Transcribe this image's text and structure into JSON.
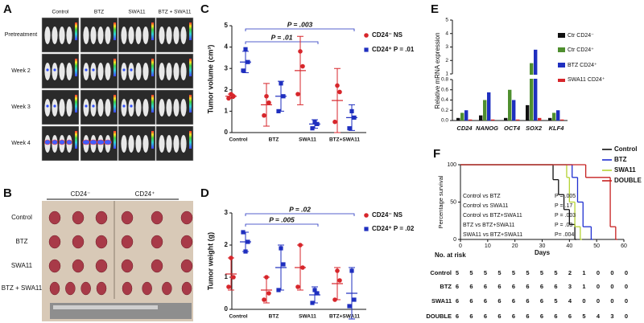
{
  "panel_a": {
    "label": "A",
    "columns": [
      "Control",
      "BTZ",
      "SWA11",
      "BTZ + SWA11"
    ],
    "rows": [
      "Pretreatment",
      "Week 2",
      "Week 3",
      "Week 4"
    ]
  },
  "panel_b": {
    "label": "B",
    "groups": [
      "CD24⁻",
      "CD24⁺"
    ],
    "rows": [
      "Control",
      "BTZ",
      "SWA11",
      "BTZ + SWA11"
    ]
  },
  "chart_data": [
    {
      "type": "dotplot",
      "panel_label": "C",
      "ylabel": "Tumor volume (cm³)",
      "categories": [
        "Control",
        "BTZ",
        "SWA11",
        "BTZ+SWA11"
      ],
      "ylim": [
        0,
        5
      ],
      "yticks": [
        0,
        1,
        2,
        3,
        4,
        5
      ],
      "annotations": [
        "P = .003",
        "P = .01"
      ],
      "series": [
        {
          "name": "CD24⁻ NS",
          "color": "#d7262b",
          "marker": "circle",
          "points": [
            [
              1.6,
              1.8,
              1.7
            ],
            [
              0.8,
              1.7,
              1.4
            ],
            [
              1.8,
              3.8,
              3.1
            ],
            [
              0.5,
              2.2,
              1.9
            ]
          ],
          "means": [
            1.7,
            1.3,
            2.9,
            1.5
          ],
          "sd": [
            0.1,
            1.0,
            1.6,
            1.5
          ]
        },
        {
          "name": "CD24⁺ P = .01",
          "color": "#1f2fbf",
          "marker": "square",
          "points": [
            [
              2.9,
              3.9,
              3.3
            ],
            [
              1.0,
              2.3,
              1.7
            ],
            [
              0.2,
              0.5,
              0.4
            ],
            [
              0.2,
              1.0,
              0.7
            ]
          ],
          "means": [
            3.3,
            1.7,
            0.4,
            0.7
          ],
          "sd": [
            0.5,
            0.7,
            0.2,
            0.6
          ]
        }
      ]
    },
    {
      "type": "dotplot",
      "panel_label": "D",
      "ylabel": "Tumor weight (g)",
      "categories": [
        "Control",
        "BTZ",
        "SWA11",
        "BTZ+SWA11"
      ],
      "ylim": [
        0,
        3
      ],
      "yticks": [
        0,
        1,
        2,
        3
      ],
      "annotations": [
        "P = .02",
        "P = .005"
      ],
      "series": [
        {
          "name": "CD24⁻ NS",
          "color": "#d7262b",
          "marker": "circle",
          "points": [
            [
              0.7,
              1.6,
              1.0
            ],
            [
              0.3,
              1.0,
              0.5
            ],
            [
              0.7,
              2.0,
              1.3
            ],
            [
              0.3,
              1.2,
              0.9
            ]
          ],
          "means": [
            1.1,
            0.6,
            1.3,
            0.8
          ],
          "sd": [
            0.5,
            0.4,
            0.7,
            0.5
          ]
        },
        {
          "name": "CD24⁺ P = .02",
          "color": "#1f2fbf",
          "marker": "square",
          "points": [
            [
              2.4,
              1.8,
              2.1
            ],
            [
              0.6,
              1.9,
              1.4
            ],
            [
              0.2,
              0.6,
              0.5
            ],
            [
              0.1,
              1.2,
              0.3
            ]
          ],
          "means": [
            2.1,
            1.3,
            0.45,
            0.5
          ],
          "sd": [
            0.3,
            0.7,
            0.25,
            0.8
          ]
        }
      ]
    },
    {
      "type": "bar",
      "panel_label": "E",
      "ylabel": "Relative mRNA expression",
      "categories": [
        "CD24",
        "NANOG",
        "OCT4",
        "SOX2",
        "KLF4"
      ],
      "ylim": [
        0,
        5
      ],
      "axis_break": [
        0.8,
        1
      ],
      "yticks": [
        {
          "value": 0,
          "label": "0.0"
        },
        0.2,
        0.4,
        0.6,
        0.8,
        1,
        2,
        3,
        4,
        5
      ],
      "series": [
        {
          "name": "Ctr CD24⁻",
          "color": "#111111",
          "values": [
            0.05,
            0.1,
            0.05,
            0.3,
            0.05
          ]
        },
        {
          "name": "Ctr CD24⁺",
          "color": "#4f8f2f",
          "values": [
            0.15,
            0.4,
            0.6,
            1.8,
            0.15
          ]
        },
        {
          "name": "BTZ CD24⁺",
          "color": "#1f2fbf",
          "values": [
            0.2,
            0.55,
            0.4,
            2.8,
            0.2
          ]
        },
        {
          "name": "SWA11 CD24⁺",
          "color": "#d7262b",
          "values": [
            0.02,
            0.02,
            0.02,
            0.05,
            0.02
          ]
        }
      ]
    },
    {
      "type": "survival",
      "panel_label": "F",
      "ylabel": "Percentage survival",
      "xlabel": "Days",
      "xlim": [
        0,
        60
      ],
      "xticks": [
        0,
        10,
        20,
        30,
        40,
        50,
        60
      ],
      "ylim": [
        0,
        100
      ],
      "yticks": [
        0,
        50,
        100
      ],
      "legend": "upper right",
      "series": [
        {
          "name": "Control",
          "color": "#111111",
          "x": [
            0,
            34,
            36,
            38,
            40,
            42
          ],
          "values": [
            100,
            80,
            60,
            40,
            20,
            0
          ]
        },
        {
          "name": "BTZ",
          "color": "#1f2fd0",
          "x": [
            0,
            41,
            43,
            45,
            48
          ],
          "values": [
            100,
            83,
            50,
            17,
            0
          ]
        },
        {
          "name": "SWA11",
          "color": "#b5d334",
          "x": [
            0,
            39,
            40,
            42,
            44
          ],
          "values": [
            100,
            83,
            50,
            17,
            0
          ]
        },
        {
          "name": "DOUBLE",
          "color": "#c62020",
          "x": [
            0,
            46,
            55,
            57
          ],
          "values": [
            100,
            83,
            17,
            0
          ]
        }
      ],
      "comparisons": [
        {
          "groups": "Control vs BTZ",
          "p": "P = .005"
        },
        {
          "groups": "Control vs SWA11",
          "p": "P = .17"
        },
        {
          "groups": "Control vs BTZ+SWA11",
          "p": "P = .003"
        },
        {
          "groups": "BTZ vs BTZ+SWA11",
          "p": "P = .03"
        },
        {
          "groups": "SWA11 vs BTZ+SWA11",
          "p": "P= .004"
        }
      ]
    }
  ],
  "risk_table": {
    "title": "No. at risk",
    "rows": [
      {
        "label": "Control",
        "counts": [
          "5",
          "5",
          "5",
          "5",
          "5",
          "5",
          "5",
          "5",
          "2",
          "1",
          "0",
          "0",
          "0"
        ]
      },
      {
        "label": "BTZ",
        "counts": [
          "6",
          "6",
          "6",
          "6",
          "6",
          "6",
          "6",
          "6",
          "3",
          "1",
          "0",
          "0",
          "0"
        ]
      },
      {
        "label": "SWA11",
        "counts": [
          "6",
          "6",
          "6",
          "6",
          "6",
          "6",
          "6",
          "5",
          "4",
          "0",
          "0",
          "0",
          "0"
        ]
      },
      {
        "label": "DOUBLE",
        "counts": [
          "6",
          "6",
          "6",
          "6",
          "6",
          "6",
          "6",
          "6",
          "6",
          "5",
          "4",
          "3",
          "0"
        ]
      }
    ]
  }
}
